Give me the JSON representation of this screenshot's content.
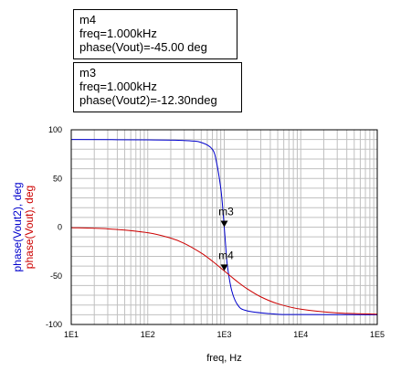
{
  "markers": [
    {
      "name": "m4",
      "freq": "freq=1.000kHz",
      "value": "phase(Vout)=-45.00 deg"
    },
    {
      "name": "m3",
      "freq": "freq=1.000kHz",
      "value": "phase(Vout2)=-12.30ndeg"
    }
  ],
  "chart_data": {
    "type": "line",
    "xlabel": "freq, Hz",
    "ylabels": [
      {
        "text": "phase(Vout2), deg",
        "color": "#0000cc"
      },
      {
        "text": "phase(Vout), deg",
        "color": "#cc0000"
      }
    ],
    "x_scale": "log",
    "xlim": [
      10,
      100000
    ],
    "ylim": [
      -100,
      100
    ],
    "x_ticks": [
      "1E1",
      "1E2",
      "1E3",
      "1E4",
      "1E5"
    ],
    "y_ticks": [
      "100",
      "50",
      "0",
      "-50",
      "-100"
    ],
    "grid": true,
    "series": [
      {
        "color": "#0000cc",
        "x": [
          10,
          100,
          300,
          500,
          700,
          800,
          900,
          950,
          1000,
          1050,
          1100,
          1250,
          1500,
          2000,
          5000,
          10000,
          100000
        ],
        "y": [
          89.97,
          89.7,
          89.0,
          87.0,
          80.0,
          65.0,
          40.0,
          22.0,
          0,
          -22.0,
          -40.0,
          -65.0,
          -80.0,
          -86.0,
          -89.5,
          -89.8,
          -89.99
        ]
      },
      {
        "color": "#cc0000",
        "x": [
          10,
          30,
          100,
          200,
          300,
          500,
          700,
          1000,
          1500,
          2000,
          3000,
          5000,
          10000,
          30000,
          100000
        ],
        "y": [
          -0.57,
          -1.72,
          -5.71,
          -11.3,
          -16.7,
          -26.6,
          -35.0,
          -45.0,
          -56.3,
          -63.4,
          -71.6,
          -78.7,
          -84.3,
          -88.1,
          -89.4
        ]
      }
    ],
    "marker_points": [
      {
        "label": "m3",
        "x": 1000,
        "y": 0
      },
      {
        "label": "m4",
        "x": 1000,
        "y": -45
      }
    ]
  }
}
